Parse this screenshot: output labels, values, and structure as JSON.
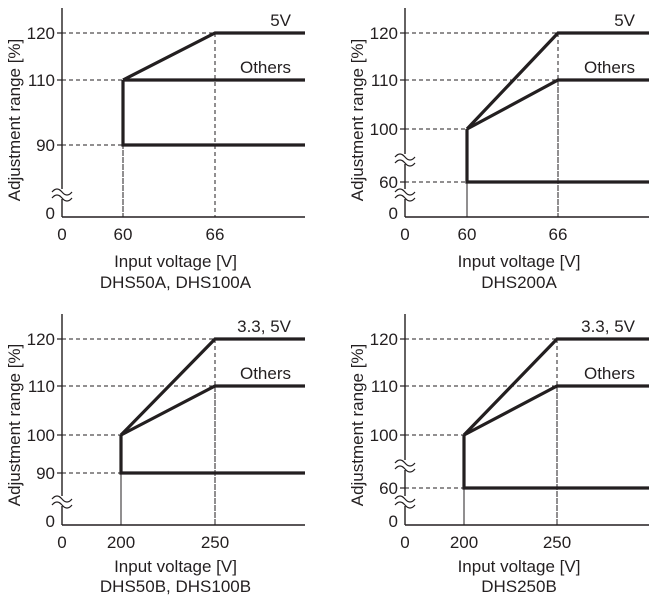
{
  "chart_data": [
    {
      "type": "line",
      "caption": "DHS50A, DHS100A",
      "xlabel": "Input voltage [V]",
      "ylabel": "Adjustment range [%]",
      "x_ticks": [
        {
          "label": "0",
          "value": 0
        },
        {
          "label": "60",
          "value": 60
        },
        {
          "label": "66",
          "value": 66
        }
      ],
      "y_ticks": [
        {
          "label": "0",
          "value": 0
        },
        {
          "label": "90",
          "value": 90
        },
        {
          "label": "110",
          "value": 110
        },
        {
          "label": "120",
          "value": 120
        }
      ],
      "xlim": [
        0,
        75
      ],
      "y_axis_break": true,
      "guides": [
        {
          "x": 60,
          "y": 90
        },
        {
          "x": 60,
          "y": 110
        },
        {
          "x": 66,
          "y": 120
        }
      ],
      "series": [
        {
          "name": "5V",
          "points": [
            [
              60,
              110
            ],
            [
              66,
              120
            ],
            [
              75,
              120
            ]
          ]
        },
        {
          "name": "Others",
          "points": [
            [
              60,
              110
            ],
            [
              75,
              110
            ]
          ]
        },
        {
          "name": "",
          "points": [
            [
              60,
              110
            ],
            [
              60,
              90
            ],
            [
              75,
              90
            ]
          ]
        }
      ]
    },
    {
      "type": "line",
      "caption": "DHS200A",
      "xlabel": "Input voltage [V]",
      "ylabel": "Adjustment range [%]",
      "x_ticks": [
        {
          "label": "0",
          "value": 0
        },
        {
          "label": "60",
          "value": 60
        },
        {
          "label": "66",
          "value": 66
        }
      ],
      "y_ticks": [
        {
          "label": "0",
          "value": 0
        },
        {
          "label": "60",
          "value": 60
        },
        {
          "label": "100",
          "value": 100
        },
        {
          "label": "110",
          "value": 110
        },
        {
          "label": "120",
          "value": 120
        }
      ],
      "xlim": [
        0,
        75
      ],
      "y_axis_break": true,
      "guides": [
        {
          "x": 60,
          "y": 60
        },
        {
          "x": 60,
          "y": 100
        },
        {
          "x": 66,
          "y": 110
        },
        {
          "x": 66,
          "y": 120
        }
      ],
      "series": [
        {
          "name": "5V",
          "points": [
            [
              60,
              100
            ],
            [
              66,
              120
            ],
            [
              75,
              120
            ]
          ]
        },
        {
          "name": "Others",
          "points": [
            [
              60,
              100
            ],
            [
              66,
              110
            ],
            [
              75,
              110
            ]
          ]
        },
        {
          "name": "",
          "points": [
            [
              60,
              100
            ],
            [
              60,
              60
            ],
            [
              75,
              60
            ]
          ]
        }
      ]
    },
    {
      "type": "line",
      "caption": "DHS50B, DHS100B",
      "xlabel": "Input voltage [V]",
      "ylabel": "Adjustment range [%]",
      "x_ticks": [
        {
          "label": "0",
          "value": 0
        },
        {
          "label": "200",
          "value": 200
        },
        {
          "label": "250",
          "value": 250
        }
      ],
      "y_ticks": [
        {
          "label": "0",
          "value": 0
        },
        {
          "label": "90",
          "value": 90
        },
        {
          "label": "100",
          "value": 100
        },
        {
          "label": "110",
          "value": 110
        },
        {
          "label": "120",
          "value": 120
        }
      ],
      "xlim": [
        0,
        280
      ],
      "y_axis_break": true,
      "guides": [
        {
          "x": 200,
          "y": 90
        },
        {
          "x": 200,
          "y": 100
        },
        {
          "x": 250,
          "y": 110
        },
        {
          "x": 250,
          "y": 120
        }
      ],
      "series": [
        {
          "name": "3.3, 5V",
          "points": [
            [
              200,
              100
            ],
            [
              250,
              120
            ],
            [
              280,
              120
            ]
          ]
        },
        {
          "name": "Others",
          "points": [
            [
              200,
              100
            ],
            [
              250,
              110
            ],
            [
              280,
              110
            ]
          ]
        },
        {
          "name": "",
          "points": [
            [
              200,
              100
            ],
            [
              200,
              90
            ],
            [
              280,
              90
            ]
          ]
        }
      ]
    },
    {
      "type": "line",
      "caption": "DHS250B",
      "xlabel": "Input voltage [V]",
      "ylabel": "Adjustment range [%]",
      "x_ticks": [
        {
          "label": "0",
          "value": 0
        },
        {
          "label": "200",
          "value": 200
        },
        {
          "label": "250",
          "value": 250
        }
      ],
      "y_ticks": [
        {
          "label": "0",
          "value": 0
        },
        {
          "label": "60",
          "value": 60
        },
        {
          "label": "100",
          "value": 100
        },
        {
          "label": "110",
          "value": 110
        },
        {
          "label": "120",
          "value": 120
        }
      ],
      "xlim": [
        0,
        280
      ],
      "y_axis_break": true,
      "guides": [
        {
          "x": 200,
          "y": 60
        },
        {
          "x": 200,
          "y": 100
        },
        {
          "x": 250,
          "y": 110
        },
        {
          "x": 250,
          "y": 120
        }
      ],
      "series": [
        {
          "name": "3.3, 5V",
          "points": [
            [
              200,
              100
            ],
            [
              250,
              120
            ],
            [
              280,
              120
            ]
          ]
        },
        {
          "name": "Others",
          "points": [
            [
              200,
              100
            ],
            [
              250,
              110
            ],
            [
              280,
              110
            ]
          ]
        },
        {
          "name": "",
          "points": [
            [
              200,
              100
            ],
            [
              200,
              60
            ],
            [
              280,
              60
            ]
          ]
        }
      ]
    }
  ]
}
